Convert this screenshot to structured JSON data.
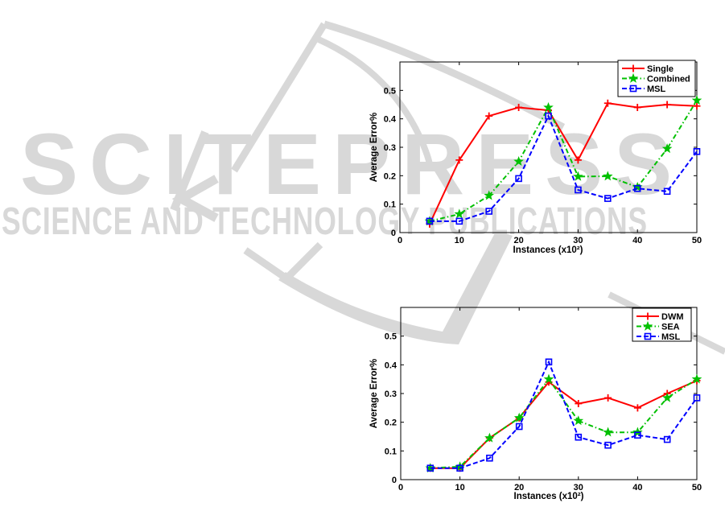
{
  "watermark": {
    "line1": "SCITEPRESS",
    "line2": "SCIENCE AND TECHNOLOGY PUBLICATIONS",
    "color": "#d8d8d8"
  },
  "chart_data": [
    {
      "type": "line",
      "title": "",
      "xlabel": "Instances (x10²)",
      "ylabel": "Average Error%",
      "xlim": [
        0,
        50
      ],
      "ylim": [
        0,
        0.6
      ],
      "xticks": [
        0,
        10,
        20,
        30,
        40,
        50
      ],
      "yticks": [
        0,
        0.1,
        0.2,
        0.3,
        0.4,
        0.5
      ],
      "grid": false,
      "legend_position": "top-right",
      "x": [
        5,
        10,
        15,
        20,
        25,
        30,
        35,
        40,
        45,
        50
      ],
      "series": [
        {
          "name": "Single",
          "color": "#ff0000",
          "style": "solid",
          "marker": "plus",
          "values": [
            0.03,
            0.255,
            0.41,
            0.44,
            0.43,
            0.255,
            0.455,
            0.44,
            0.45,
            0.445
          ]
        },
        {
          "name": "Combined",
          "color": "#00c000",
          "style": "dashdot",
          "marker": "star",
          "values": [
            0.04,
            0.065,
            0.13,
            0.25,
            0.44,
            0.197,
            0.198,
            0.16,
            0.295,
            0.465
          ]
        },
        {
          "name": "MSL",
          "color": "#0000ff",
          "style": "dashed",
          "marker": "square",
          "values": [
            0.04,
            0.04,
            0.075,
            0.19,
            0.41,
            0.15,
            0.12,
            0.155,
            0.145,
            0.285
          ]
        }
      ]
    },
    {
      "type": "line",
      "title": "",
      "xlabel": "Instances (x10²)",
      "ylabel": "Average Error%",
      "xlim": [
        0,
        50
      ],
      "ylim": [
        0,
        0.6
      ],
      "xticks": [
        0,
        10,
        20,
        30,
        40,
        50
      ],
      "yticks": [
        0,
        0.1,
        0.2,
        0.3,
        0.4,
        0.5
      ],
      "grid": false,
      "legend_position": "top-right",
      "x": [
        5,
        10,
        15,
        20,
        25,
        30,
        35,
        40,
        45,
        50
      ],
      "series": [
        {
          "name": "DWM",
          "color": "#ff0000",
          "style": "solid",
          "marker": "plus",
          "values": [
            0.04,
            0.04,
            0.145,
            0.215,
            0.34,
            0.265,
            0.285,
            0.25,
            0.3,
            0.345
          ]
        },
        {
          "name": "SEA",
          "color": "#00c000",
          "style": "dashdot",
          "marker": "star",
          "values": [
            0.04,
            0.045,
            0.145,
            0.215,
            0.35,
            0.205,
            0.165,
            0.165,
            0.285,
            0.35
          ]
        },
        {
          "name": "MSL",
          "color": "#0000ff",
          "style": "dashed",
          "marker": "square",
          "values": [
            0.04,
            0.04,
            0.075,
            0.185,
            0.41,
            0.148,
            0.12,
            0.155,
            0.14,
            0.285
          ]
        }
      ]
    }
  ]
}
